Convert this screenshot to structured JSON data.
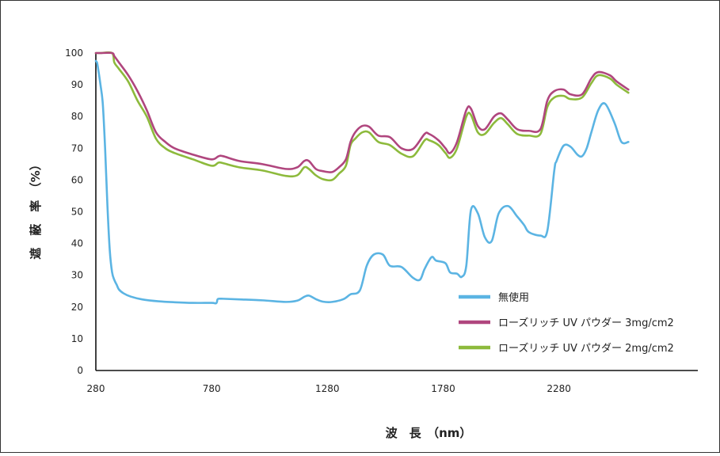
{
  "chart_data": {
    "type": "line",
    "xlabel": "波　長　（nm）",
    "ylabel": "遮　蔽　率　（%）",
    "xlim": [
      280,
      2880
    ],
    "ylim": [
      0,
      100
    ],
    "xticks": [
      280,
      780,
      1280,
      1780,
      2280
    ],
    "yticks": [
      0,
      10,
      20,
      30,
      40,
      50,
      60,
      70,
      80,
      90,
      100
    ],
    "grid": false,
    "legend_position": "bottom-right",
    "series": [
      {
        "name": "無使用",
        "color": "#5bb4e3",
        "x": [
          280,
          285,
          290,
          300,
          310,
          320,
          330,
          340,
          350,
          360,
          370,
          380,
          400,
          430,
          480,
          550,
          620,
          700,
          780,
          800,
          805,
          810,
          830,
          900,
          1000,
          1100,
          1150,
          1180,
          1200,
          1230,
          1260,
          1300,
          1350,
          1380,
          1420,
          1450,
          1480,
          1520,
          1550,
          1600,
          1650,
          1680,
          1700,
          1730,
          1750,
          1790,
          1810,
          1840,
          1860,
          1880,
          1900,
          1930,
          1960,
          1990,
          2020,
          2060,
          2100,
          2130,
          2150,
          2200,
          2230,
          2260,
          2270,
          2300,
          2330,
          2360,
          2380,
          2400,
          2420,
          2450,
          2480,
          2520,
          2550,
          2580
        ],
        "y": [
          97.5,
          97,
          95,
          90,
          84,
          70,
          52,
          38,
          31,
          28.5,
          27,
          25.5,
          24.3,
          23.3,
          22.4,
          21.8,
          21.5,
          21.3,
          21.3,
          21.2,
          22.3,
          22.6,
          22.6,
          22.4,
          22.1,
          21.6,
          22,
          23.2,
          23.6,
          22.5,
          21.7,
          21.6,
          22.5,
          24,
          25.2,
          33,
          36.5,
          36.5,
          33,
          32.6,
          29.2,
          28.6,
          32,
          35.7,
          34.6,
          33.8,
          30.9,
          30.5,
          29.5,
          33,
          50.5,
          49.5,
          42,
          40.8,
          49.5,
          51.8,
          48.5,
          45.8,
          43.6,
          42.5,
          44,
          63,
          66,
          70.8,
          70.5,
          68,
          67.5,
          70,
          75,
          82,
          84,
          78,
          72,
          72
        ]
      },
      {
        "name": "ローズリッチ UV パウダー  3mg/cm2",
        "color": "#b0467e",
        "x": [
          280,
          300,
          350,
          360,
          380,
          420,
          460,
          500,
          540,
          580,
          620,
          700,
          780,
          810,
          830,
          900,
          1000,
          1100,
          1150,
          1180,
          1200,
          1230,
          1260,
          1300,
          1330,
          1360,
          1380,
          1400,
          1430,
          1460,
          1500,
          1550,
          1600,
          1650,
          1700,
          1720,
          1760,
          1790,
          1810,
          1840,
          1880,
          1900,
          1930,
          1960,
          2000,
          2030,
          2060,
          2100,
          2150,
          2200,
          2230,
          2260,
          2300,
          2330,
          2380,
          2420,
          2450,
          2500,
          2530,
          2580
        ],
        "y": [
          100,
          100,
          100,
          99,
          97,
          93,
          88,
          82,
          75,
          72,
          70,
          68,
          66.5,
          67.5,
          67.5,
          66,
          65,
          63.5,
          64,
          66,
          66,
          63.5,
          62.8,
          62.5,
          64,
          66.5,
          72,
          75,
          77,
          76.8,
          74,
          73.5,
          70,
          69.8,
          74.5,
          74.5,
          72.5,
          70,
          68.5,
          72,
          82,
          82.5,
          77,
          76,
          80,
          81,
          79,
          76,
          75.5,
          76,
          85,
          88,
          88.5,
          87,
          87,
          92,
          94,
          93,
          91,
          88.5
        ]
      },
      {
        "name": "ローズリッチ UV パウダー  2mg/cm2",
        "color": "#8dba3c",
        "x": [
          280,
          300,
          350,
          360,
          380,
          420,
          460,
          500,
          540,
          580,
          620,
          700,
          780,
          810,
          830,
          900,
          1000,
          1100,
          1150,
          1180,
          1200,
          1230,
          1260,
          1300,
          1330,
          1360,
          1380,
          1400,
          1430,
          1460,
          1500,
          1550,
          1600,
          1650,
          1700,
          1720,
          1760,
          1790,
          1810,
          1840,
          1880,
          1900,
          1930,
          1960,
          2000,
          2030,
          2060,
          2100,
          2150,
          2200,
          2230,
          2260,
          2300,
          2330,
          2380,
          2420,
          2450,
          2500,
          2530,
          2580
        ],
        "y": [
          100,
          100,
          100,
          97,
          95,
          91,
          85,
          80,
          73,
          70,
          68.5,
          66.5,
          64.5,
          65.5,
          65.3,
          64,
          63,
          61.3,
          61.5,
          64,
          63.5,
          61.5,
          60.3,
          60,
          62,
          64.5,
          71,
          73,
          75,
          75,
          72,
          71,
          68.3,
          67.5,
          72.5,
          72.5,
          71,
          68.5,
          67,
          70,
          80,
          80.5,
          75,
          74.5,
          78,
          79.5,
          77.5,
          74.5,
          74,
          74.5,
          83,
          86,
          86.5,
          85.5,
          86,
          90.5,
          93,
          92,
          90,
          87.5
        ]
      }
    ]
  }
}
